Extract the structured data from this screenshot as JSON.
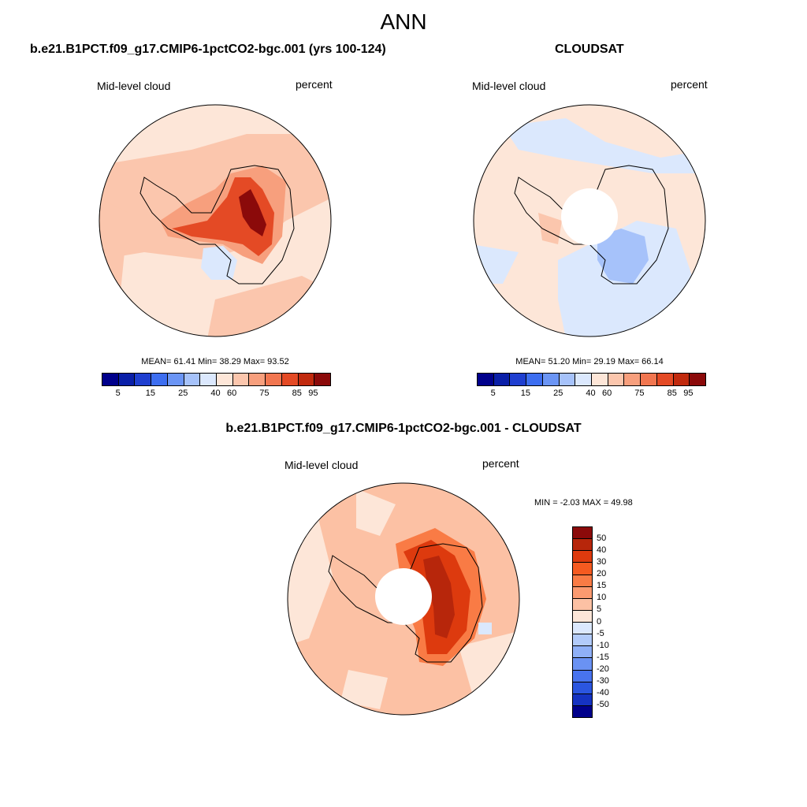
{
  "main_title": "ANN",
  "panels": [
    {
      "title": "b.e21.B1PCT.f09_g17.CMIP6-1pctCO2-bgc.001 (yrs 100-124)",
      "left_label": "Mid-level cloud",
      "right_label": "percent",
      "stats": "MEAN=  61.41  Min=  38.29  Max=  93.52"
    },
    {
      "title": "CLOUDSAT",
      "left_label": "Mid-level cloud",
      "right_label": "percent",
      "stats": "MEAN=  51.20  Min=  29.19  Max=  66.14"
    },
    {
      "title": "b.e21.B1PCT.f09_g17.CMIP6-1pctCO2-bgc.001 - CLOUDSAT",
      "left_label": "Mid-level cloud",
      "right_label": "percent",
      "stats": "MIN =  -2.03 MAX =  49.98"
    }
  ],
  "colorbar_top": {
    "colors": [
      "#00008b",
      "#0a1fa8",
      "#1f3fd0",
      "#3d6ef0",
      "#6b95f5",
      "#a6c2fa",
      "#dbe8fd",
      "#fde6d8",
      "#fbc6ad",
      "#f79f7d",
      "#f17650",
      "#e44a25",
      "#c12a0e",
      "#8b0a0a"
    ],
    "ticks": [
      "5",
      "15",
      "25",
      "40",
      "60",
      "75",
      "85",
      "95"
    ]
  },
  "colorbar_diff": {
    "colors": [
      "#8b0a0a",
      "#b7260b",
      "#dd3a0e",
      "#f55a20",
      "#f97b45",
      "#fb9a70",
      "#fcc1a4",
      "#fde6d8",
      "#dbe8fd",
      "#b2cbfa",
      "#8fb0f7",
      "#6a92f3",
      "#4873ee",
      "#2b56e0",
      "#1533c2",
      "#00008b"
    ],
    "ticks": [
      "50",
      "40",
      "30",
      "20",
      "15",
      "10",
      "5",
      "0",
      "-5",
      "-10",
      "-15",
      "-20",
      "-30",
      "-40",
      "-50"
    ]
  }
}
